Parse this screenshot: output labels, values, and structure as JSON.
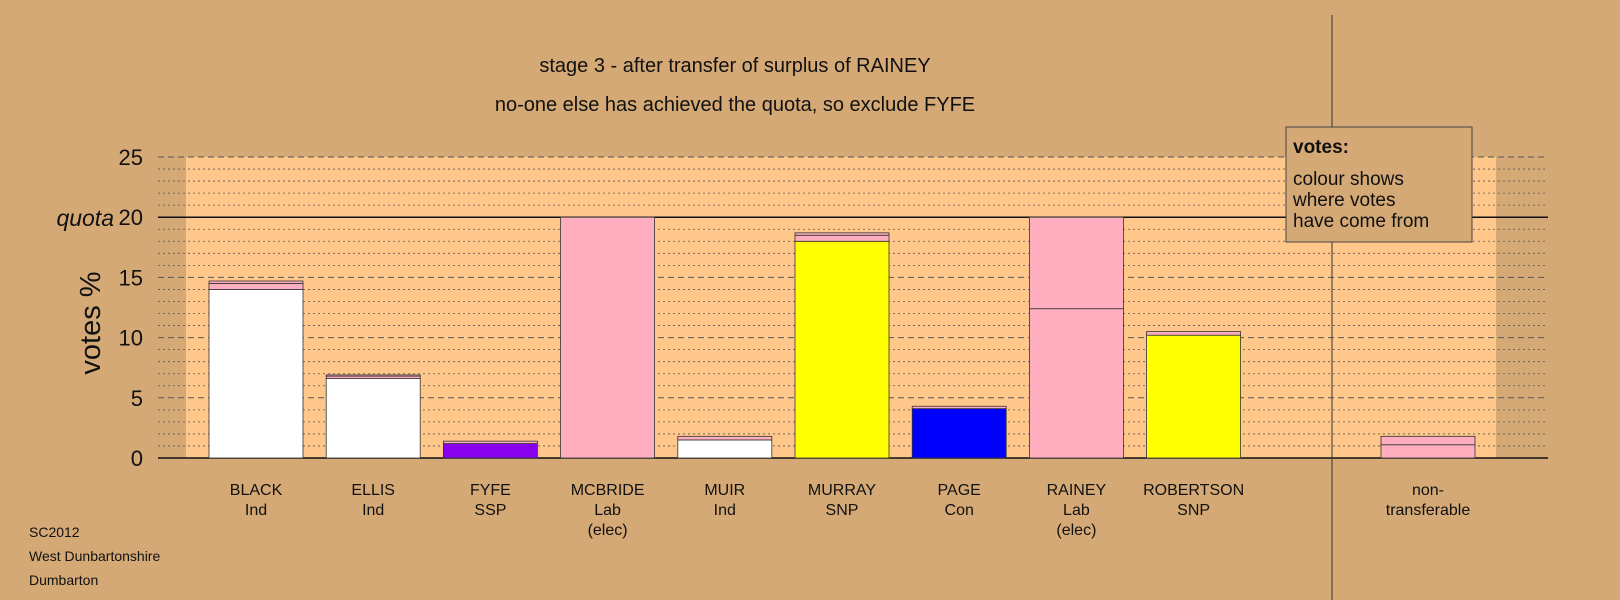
{
  "chart_data": {
    "type": "bar",
    "stacked": true,
    "title": "stage 3 - after transfer of surplus of RAINEY",
    "subtitle": "no-one else has achieved the quota, so exclude FYFE",
    "ylabel": "votes %",
    "ylim": [
      0,
      25
    ],
    "yticks": [
      0,
      5,
      10,
      15,
      20,
      25
    ],
    "quota": 20,
    "quota_label": "quota",
    "grid": true,
    "categories": [
      {
        "name": "BLACK",
        "party": "Ind",
        "note": ""
      },
      {
        "name": "ELLIS",
        "party": "Ind",
        "note": ""
      },
      {
        "name": "FYFE",
        "party": "SSP",
        "note": ""
      },
      {
        "name": "MCBRIDE",
        "party": "Lab",
        "note": "(elec)"
      },
      {
        "name": "MUIR",
        "party": "Ind",
        "note": ""
      },
      {
        "name": "MURRAY",
        "party": "SNP",
        "note": ""
      },
      {
        "name": "PAGE",
        "party": "Con",
        "note": ""
      },
      {
        "name": "RAINEY",
        "party": "Lab",
        "note": "(elec)"
      },
      {
        "name": "ROBERTSON",
        "party": "SNP",
        "note": ""
      },
      {
        "name": "non-",
        "party": "transferable",
        "note": ""
      }
    ],
    "stacks": [
      [
        {
          "value": 14.0,
          "color": "#ffffff"
        },
        {
          "value": 0.5,
          "color": "#ffaec0"
        },
        {
          "value": 0.2,
          "color": "#ffaec0"
        }
      ],
      [
        {
          "value": 6.6,
          "color": "#ffffff"
        },
        {
          "value": 0.2,
          "color": "#ffaec0"
        },
        {
          "value": 0.1,
          "color": "#ffaec0"
        }
      ],
      [
        {
          "value": 1.2,
          "color": "#8800ee"
        },
        {
          "value": 0.2,
          "color": "#ffaec0"
        }
      ],
      [
        {
          "value": 20.0,
          "color": "#ffaec0"
        }
      ],
      [
        {
          "value": 1.5,
          "color": "#ffffff"
        },
        {
          "value": 0.3,
          "color": "#ffaec0"
        }
      ],
      [
        {
          "value": 18.0,
          "color": "#ffff00"
        },
        {
          "value": 0.5,
          "color": "#ffaec0"
        },
        {
          "value": 0.2,
          "color": "#ffaec0"
        }
      ],
      [
        {
          "value": 4.1,
          "color": "#0000ff"
        },
        {
          "value": 0.2,
          "color": "#ffaec0"
        }
      ],
      [
        {
          "value": 12.4,
          "color": "#ffaec0"
        },
        {
          "value": 7.6,
          "color": "#ffaec0"
        }
      ],
      [
        {
          "value": 10.2,
          "color": "#ffff00"
        },
        {
          "value": 0.3,
          "color": "#ffaec0"
        }
      ],
      [
        {
          "value": 1.1,
          "color": "#ffaec0"
        },
        {
          "value": 0.7,
          "color": "#ffaec0"
        }
      ]
    ],
    "legend": {
      "title": "votes:",
      "lines": [
        "colour shows",
        "where votes",
        "have come from"
      ],
      "placement": "top-right"
    },
    "footnote": [
      "SC2012",
      "West Dunbartonshire",
      "Dumbarton"
    ]
  },
  "colors": {
    "background": "#d4a976",
    "plot_area": "#ffc88a",
    "axis": "#000000"
  }
}
